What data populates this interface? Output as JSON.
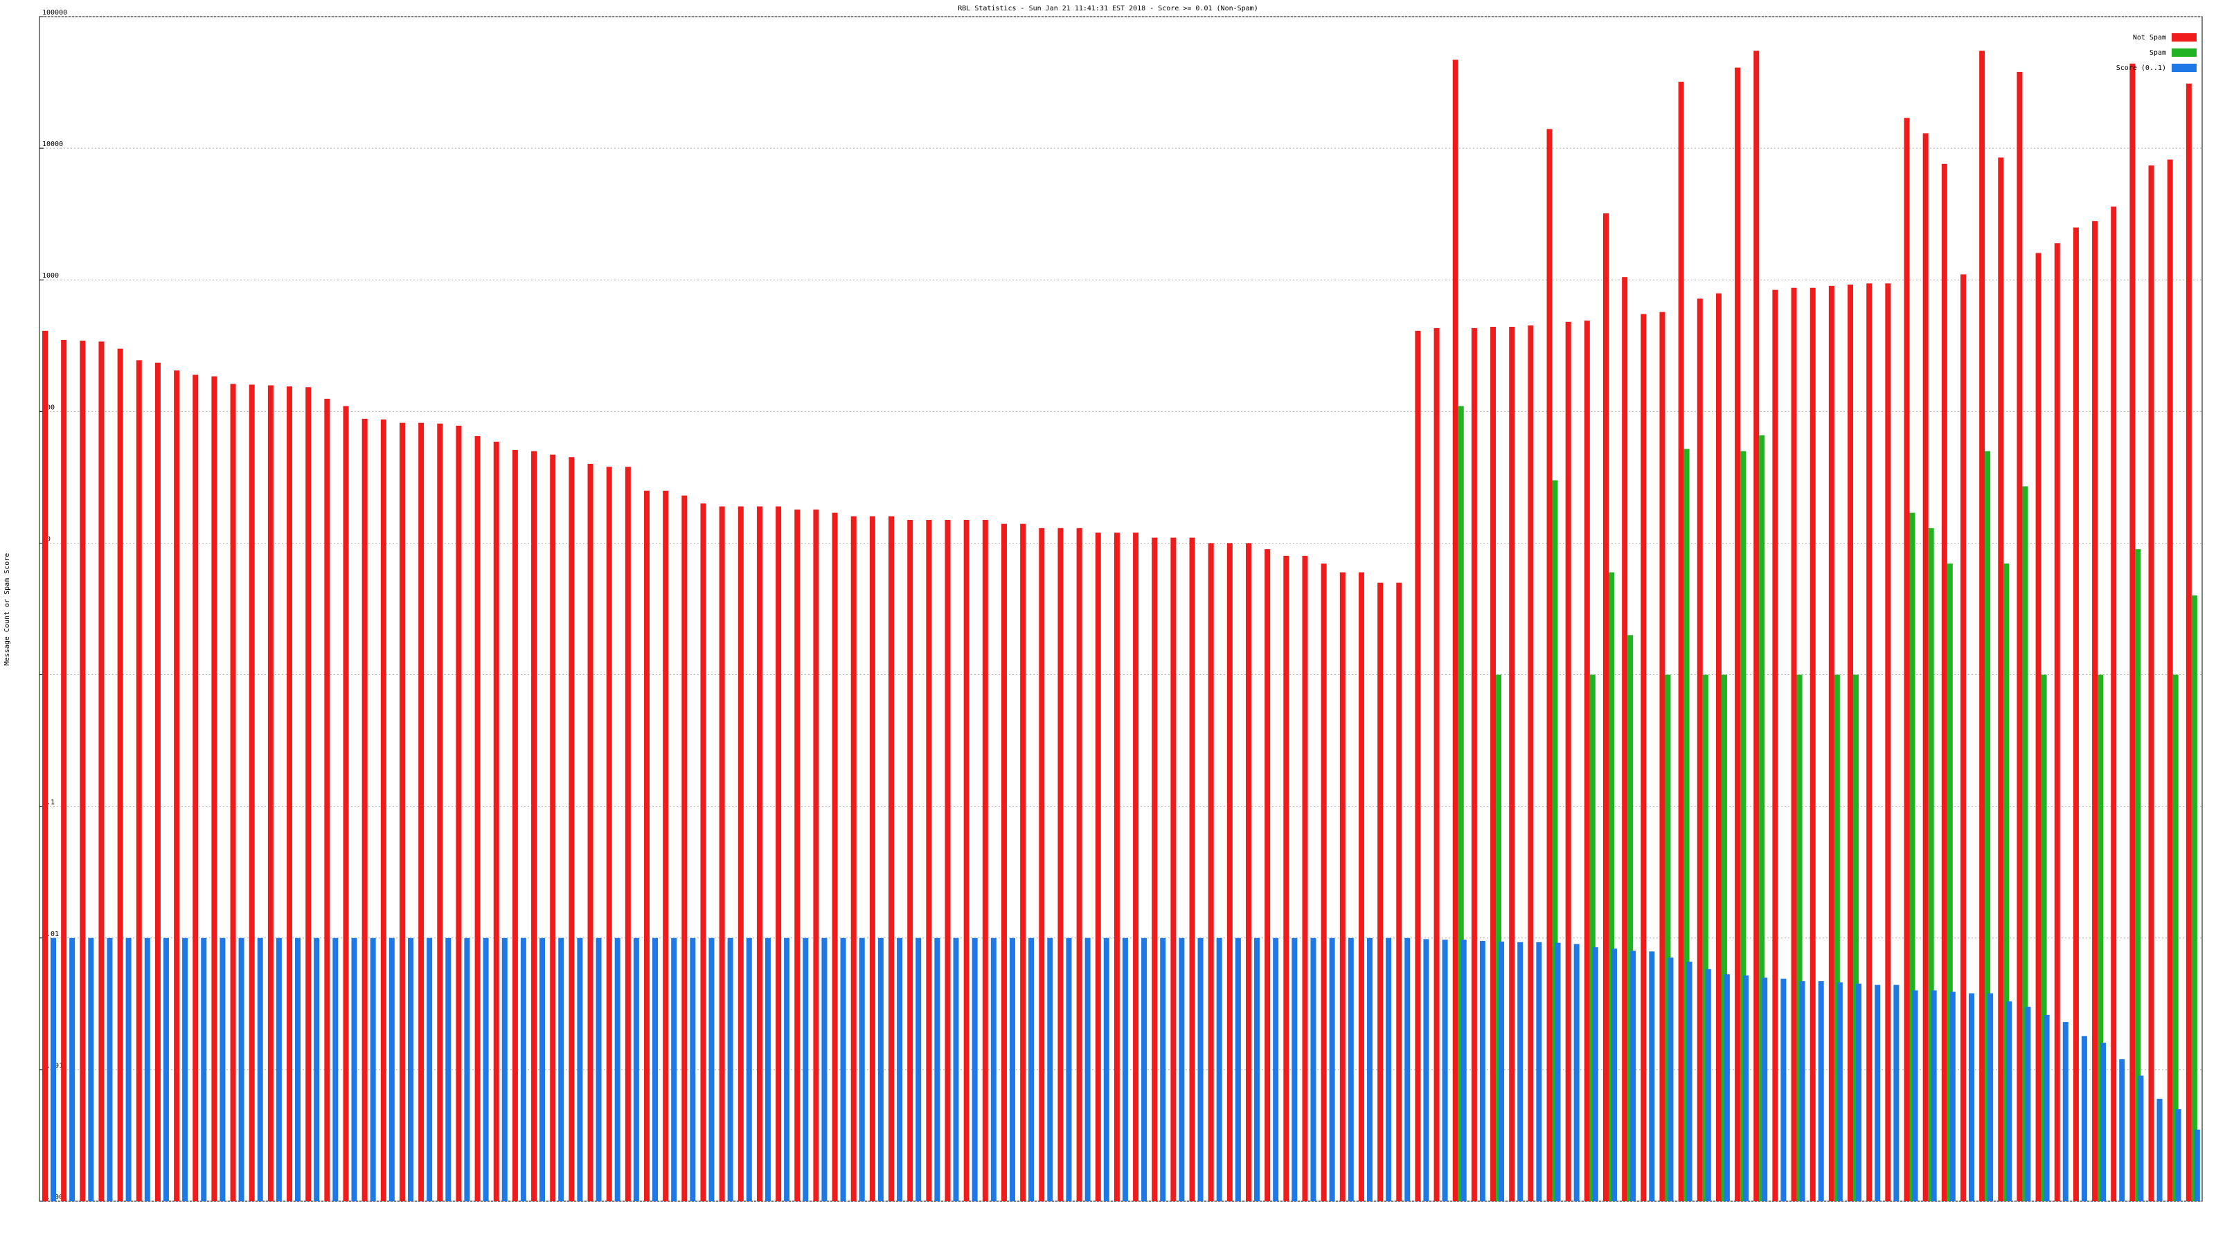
{
  "chart_data": {
    "type": "bar",
    "title": "RBL Statistics - Sun Jan 21 11:41:31 EST 2018 - Score >= 0.01 (Non-Spam)",
    "y_label": "Message Count or Spam Score",
    "yscale": "log",
    "ylim": [
      0.0001,
      100000
    ],
    "yticks": [
      0.0001,
      0.001,
      0.01,
      0.1,
      1,
      10,
      100,
      1000,
      10000,
      100000
    ],
    "grid": true,
    "legend": "upper right",
    "categories": [
      null,
      null,
      null,
      null,
      null,
      null,
      null,
      null,
      null,
      null,
      null,
      null,
      null,
      null,
      null,
      null,
      null,
      null,
      null,
      null,
      null,
      null,
      null,
      null,
      null,
      null,
      null,
      null,
      null,
      null,
      null,
      null,
      null,
      null,
      null,
      null,
      null,
      null,
      null,
      null,
      null,
      null,
      null,
      null,
      null,
      null,
      null,
      null,
      null,
      null,
      null,
      null,
      null,
      null,
      null,
      null,
      null,
      null,
      null,
      null,
      null,
      null,
      null,
      null,
      null,
      null,
      null,
      null,
      null,
      null,
      null,
      null,
      null,
      null,
      null,
      null,
      null,
      null,
      null,
      null,
      null,
      null,
      null,
      null,
      null,
      null,
      null,
      null,
      null,
      null,
      null,
      null,
      null,
      null,
      null,
      null,
      null,
      null,
      null,
      null,
      null,
      null,
      null,
      null,
      null,
      null,
      null,
      null,
      null,
      null,
      null,
      null,
      null,
      null,
      null
    ],
    "series": [
      {
        "name": "Not Spam",
        "color": "#f01c1c",
        "values": [
          410,
          350,
          345,
          340,
          300,
          245,
          235,
          205,
          190,
          185,
          162,
          160,
          158,
          155,
          153,
          125,
          110,
          88,
          87,
          82,
          82,
          81,
          78,
          65,
          59,
          51,
          50,
          47,
          45,
          40,
          38,
          38,
          25,
          25,
          23,
          20,
          19,
          19,
          19,
          19,
          18,
          18,
          17,
          16,
          16,
          16,
          15,
          15,
          15,
          15,
          15,
          14,
          14,
          13,
          13,
          13,
          12,
          12,
          12,
          11,
          11,
          11,
          10,
          10,
          10,
          9,
          8,
          8,
          7,
          6,
          6,
          5,
          5,
          410,
          430,
          47000,
          430,
          440,
          440,
          450,
          14000,
          480,
          490,
          3200,
          1050,
          550,
          570,
          32000,
          720,
          790,
          41000,
          55000,
          840,
          870,
          870,
          900,
          920,
          940,
          940,
          17000,
          13000,
          7600,
          1100,
          55000,
          8500,
          38000,
          1600,
          1900,
          2500,
          2800,
          3600,
          44000,
          7400,
          8200,
          31000
        ]
      },
      {
        "name": "Spam",
        "color": "#22b322",
        "values": [
          null,
          null,
          null,
          null,
          null,
          null,
          null,
          null,
          null,
          null,
          null,
          null,
          null,
          null,
          null,
          null,
          null,
          null,
          null,
          null,
          null,
          null,
          null,
          null,
          null,
          null,
          null,
          null,
          null,
          null,
          null,
          null,
          null,
          null,
          null,
          null,
          null,
          null,
          null,
          null,
          null,
          null,
          null,
          null,
          null,
          null,
          null,
          null,
          null,
          null,
          null,
          null,
          null,
          null,
          null,
          null,
          null,
          null,
          null,
          null,
          null,
          null,
          null,
          null,
          null,
          null,
          null,
          null,
          null,
          null,
          null,
          null,
          null,
          null,
          null,
          110,
          null,
          1,
          null,
          null,
          30,
          null,
          1,
          6,
          2,
          null,
          1,
          52,
          1,
          1,
          50,
          66,
          null,
          1,
          null,
          1,
          1,
          null,
          null,
          17,
          13,
          7,
          null,
          50,
          7,
          27,
          1,
          null,
          null,
          1,
          null,
          9,
          null,
          1,
          4
        ]
      },
      {
        "name": "Score (0..1)",
        "color": "#1e78e6",
        "values": [
          0.01,
          0.01,
          0.01,
          0.01,
          0.01,
          0.01,
          0.01,
          0.01,
          0.01,
          0.01,
          0.01,
          0.01,
          0.01,
          0.01,
          0.01,
          0.01,
          0.01,
          0.01,
          0.01,
          0.01,
          0.01,
          0.01,
          0.01,
          0.01,
          0.01,
          0.01,
          0.01,
          0.01,
          0.01,
          0.01,
          0.01,
          0.01,
          0.01,
          0.01,
          0.01,
          0.01,
          0.01,
          0.01,
          0.01,
          0.01,
          0.01,
          0.01,
          0.01,
          0.01,
          0.01,
          0.01,
          0.01,
          0.01,
          0.01,
          0.01,
          0.01,
          0.01,
          0.01,
          0.01,
          0.01,
          0.01,
          0.01,
          0.01,
          0.01,
          0.01,
          0.01,
          0.01,
          0.01,
          0.01,
          0.01,
          0.01,
          0.01,
          0.01,
          0.01,
          0.01,
          0.01,
          0.01,
          0.01,
          0.0098,
          0.0097,
          0.0097,
          0.0095,
          0.0094,
          0.0093,
          0.0093,
          0.0092,
          0.009,
          0.0085,
          0.0083,
          0.008,
          0.0079,
          0.0071,
          0.0066,
          0.0058,
          0.0053,
          0.0052,
          0.005,
          0.0049,
          0.0047,
          0.0047,
          0.0046,
          0.0045,
          0.0044,
          0.0044,
          0.004,
          0.004,
          0.0039,
          0.0038,
          0.0038,
          0.0033,
          0.003,
          0.0026,
          0.0023,
          0.0018,
          0.0016,
          0.0012,
          0.0009,
          0.0006,
          0.0005,
          0.00035
        ]
      }
    ]
  }
}
